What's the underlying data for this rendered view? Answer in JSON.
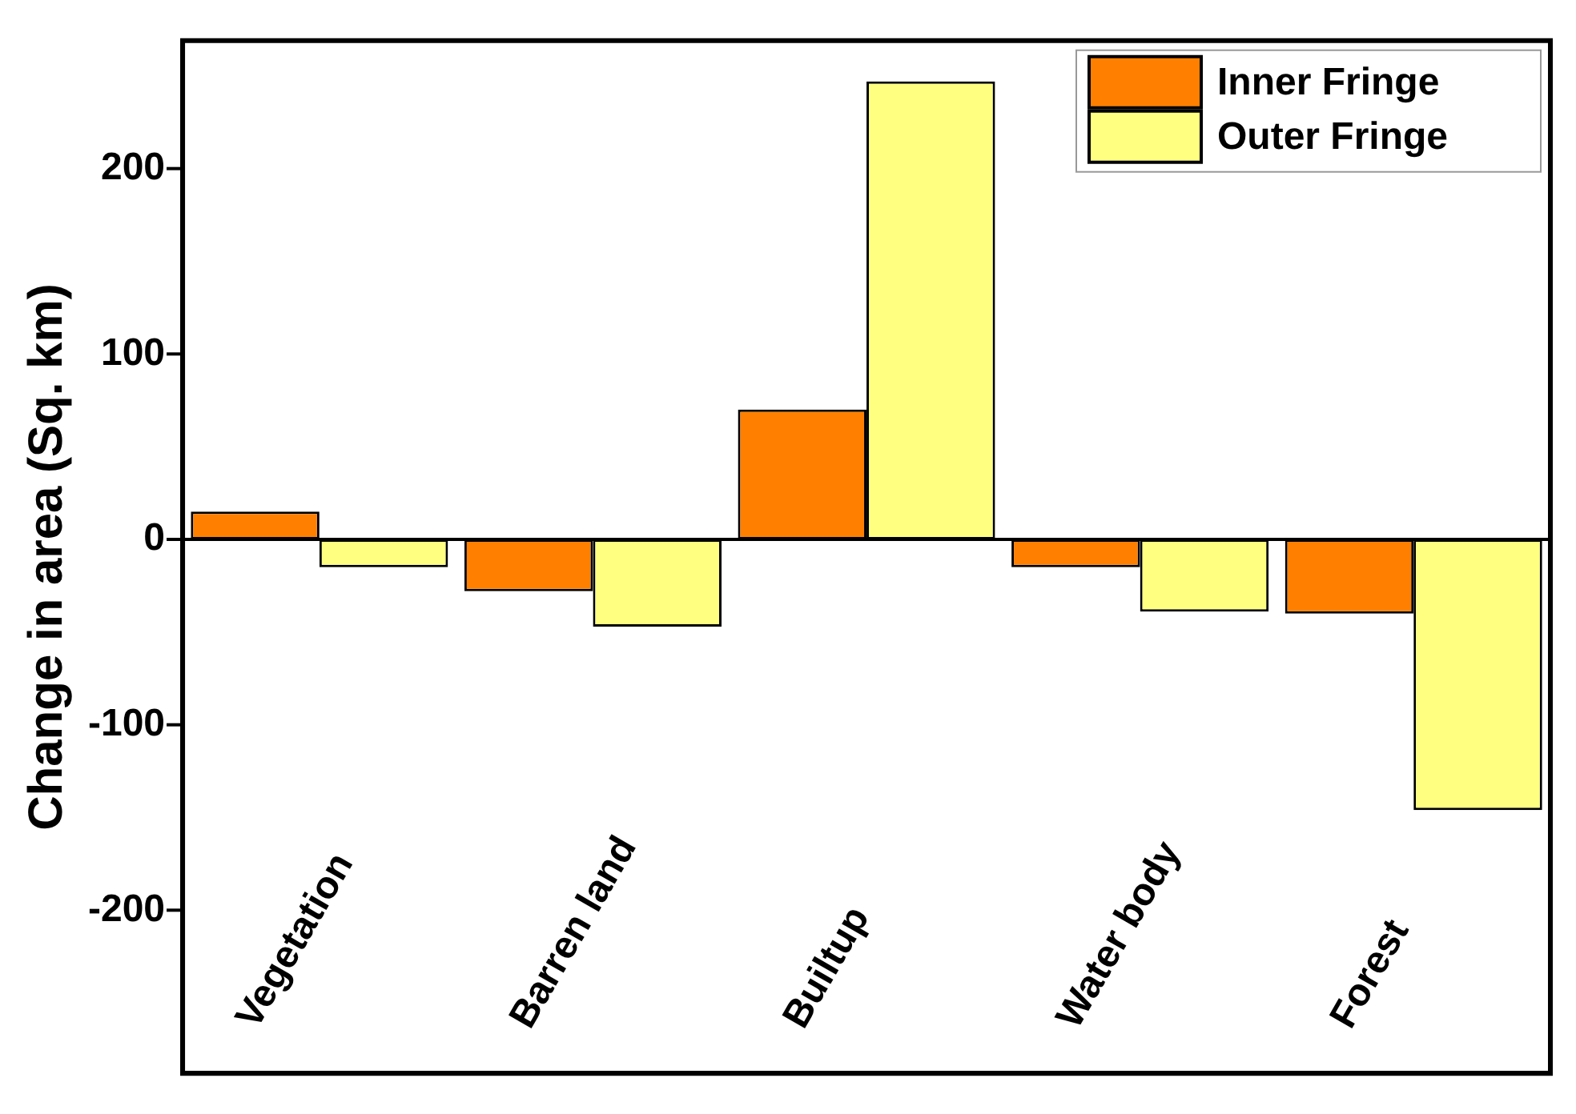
{
  "chart_data": {
    "type": "bar",
    "ylabel": "Change in area (Sq. km)",
    "categories": [
      "Vegetation",
      "Barren land",
      "Builtup",
      "Water body",
      "Forest"
    ],
    "series": [
      {
        "name": "Inner Fringe",
        "color": "#ff8000",
        "values": [
          15,
          -28,
          70,
          -15,
          -40
        ]
      },
      {
        "name": "Outer Fringe",
        "color": "#ffff80",
        "values": [
          -15,
          -47,
          247,
          -39,
          -146
        ]
      }
    ],
    "ylim": [
      -288,
      269
    ],
    "yticks": [
      -200,
      -100,
      0,
      100,
      200
    ],
    "grid": false,
    "ref_lines": [
      {
        "axis": "y",
        "value": 0,
        "color": "#000000"
      }
    ],
    "legend": "top right"
  }
}
